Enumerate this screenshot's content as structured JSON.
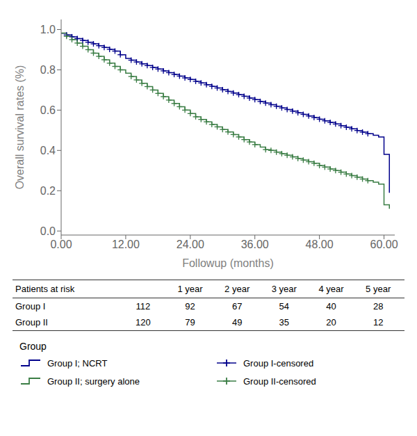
{
  "chart_data": {
    "type": "line",
    "xlabel": "Followup (months)",
    "ylabel": "Overall survival rates (%)",
    "xlim": [
      0,
      62
    ],
    "ylim": [
      -0.02,
      1.05
    ],
    "xticks": [
      {
        "value": 0,
        "label": "0.00"
      },
      {
        "value": 12,
        "label": "12.00"
      },
      {
        "value": 24,
        "label": "24.00"
      },
      {
        "value": 36,
        "label": "36.00"
      },
      {
        "value": 48,
        "label": "48.00"
      },
      {
        "value": 60,
        "label": "60.00"
      }
    ],
    "yticks": [
      {
        "value": 0.0,
        "label": "0.0"
      },
      {
        "value": 0.2,
        "label": "0.2"
      },
      {
        "value": 0.4,
        "label": "0.4"
      },
      {
        "value": 0.6,
        "label": "0.6"
      },
      {
        "value": 0.8,
        "label": "0.8"
      },
      {
        "value": 1.0,
        "label": "1.0"
      }
    ],
    "legend": "bottom",
    "legend_title": "Group",
    "series": [
      {
        "name": "Group I; NCRT",
        "type": "line",
        "line_style": "step",
        "color": "#00008B",
        "x": [
          0,
          1,
          2,
          3,
          4,
          5,
          6,
          7,
          8,
          9,
          10,
          11,
          12,
          13,
          14,
          15,
          16,
          17,
          18,
          19,
          20,
          21,
          22,
          23,
          24,
          25,
          26,
          27,
          28,
          29,
          30,
          31,
          32,
          33,
          34,
          35,
          36,
          37,
          38,
          39,
          40,
          41,
          42,
          43,
          44,
          45,
          46,
          47,
          48,
          49,
          50,
          51,
          52,
          53,
          54,
          55,
          56,
          57,
          58,
          59,
          60,
          61
        ],
        "values": [
          0.982,
          0.973,
          0.964,
          0.955,
          0.946,
          0.937,
          0.929,
          0.92,
          0.911,
          0.902,
          0.893,
          0.875,
          0.857,
          0.848,
          0.839,
          0.83,
          0.821,
          0.812,
          0.804,
          0.795,
          0.786,
          0.777,
          0.769,
          0.76,
          0.752,
          0.743,
          0.735,
          0.726,
          0.718,
          0.71,
          0.701,
          0.693,
          0.685,
          0.677,
          0.669,
          0.66,
          0.652,
          0.643,
          0.635,
          0.627,
          0.619,
          0.611,
          0.603,
          0.595,
          0.587,
          0.579,
          0.571,
          0.563,
          0.555,
          0.547,
          0.539,
          0.531,
          0.523,
          0.515,
          0.507,
          0.499,
          0.491,
          0.483,
          0.475,
          0.467,
          0.38,
          0.19
        ]
      },
      {
        "name": "Group II; surgery alone",
        "type": "line",
        "line_style": "step",
        "color": "#3A7D44",
        "x": [
          0,
          1,
          2,
          3,
          4,
          5,
          6,
          7,
          8,
          9,
          10,
          11,
          12,
          13,
          14,
          15,
          16,
          17,
          18,
          19,
          20,
          21,
          22,
          23,
          24,
          25,
          26,
          27,
          28,
          29,
          30,
          31,
          32,
          33,
          34,
          35,
          36,
          37,
          38,
          39,
          40,
          41,
          42,
          43,
          44,
          45,
          46,
          47,
          48,
          49,
          50,
          51,
          52,
          53,
          54,
          55,
          56,
          57,
          58,
          59,
          60,
          61
        ],
        "values": [
          0.983,
          0.966,
          0.95,
          0.933,
          0.917,
          0.9,
          0.883,
          0.867,
          0.85,
          0.833,
          0.817,
          0.8,
          0.783,
          0.767,
          0.75,
          0.733,
          0.717,
          0.7,
          0.683,
          0.667,
          0.65,
          0.633,
          0.617,
          0.6,
          0.583,
          0.567,
          0.554,
          0.542,
          0.529,
          0.517,
          0.504,
          0.492,
          0.479,
          0.467,
          0.454,
          0.442,
          0.429,
          0.417,
          0.404,
          0.4,
          0.392,
          0.384,
          0.376,
          0.368,
          0.36,
          0.352,
          0.344,
          0.336,
          0.325,
          0.317,
          0.308,
          0.3,
          0.292,
          0.283,
          0.275,
          0.267,
          0.258,
          0.25,
          0.242,
          0.233,
          0.13,
          0.11
        ]
      },
      {
        "name": "Group I-censored",
        "type": "scatter",
        "marker": "+",
        "color": "#00008B",
        "x": [
          1,
          2,
          3,
          4,
          5,
          6,
          7,
          8,
          9,
          10,
          11,
          13,
          14,
          15,
          16,
          17,
          18,
          19,
          20,
          21,
          22,
          23,
          24,
          25,
          26,
          27,
          28,
          29,
          30,
          31,
          32,
          33,
          34,
          35,
          36,
          37,
          38,
          39,
          40,
          41,
          42,
          43,
          44,
          45,
          46,
          47,
          48,
          49,
          50,
          51,
          52,
          53,
          54,
          55,
          56,
          57
        ],
        "values": [
          0.973,
          0.964,
          0.955,
          0.946,
          0.937,
          0.929,
          0.92,
          0.911,
          0.902,
          0.893,
          0.875,
          0.848,
          0.839,
          0.83,
          0.821,
          0.812,
          0.804,
          0.795,
          0.786,
          0.777,
          0.769,
          0.76,
          0.752,
          0.743,
          0.735,
          0.726,
          0.718,
          0.71,
          0.701,
          0.693,
          0.685,
          0.677,
          0.669,
          0.66,
          0.652,
          0.643,
          0.635,
          0.627,
          0.619,
          0.611,
          0.603,
          0.595,
          0.587,
          0.579,
          0.571,
          0.563,
          0.555,
          0.547,
          0.539,
          0.531,
          0.523,
          0.515,
          0.507,
          0.499,
          0.491,
          0.483
        ]
      },
      {
        "name": "Group II-censored",
        "type": "scatter",
        "marker": "+",
        "color": "#3A7D44",
        "x": [
          1,
          2,
          3,
          4,
          5,
          6,
          7,
          8,
          9,
          10,
          11,
          13,
          14,
          15,
          16,
          17,
          18,
          19,
          20,
          21,
          22,
          23,
          24,
          25,
          26,
          27,
          28,
          29,
          30,
          31,
          32,
          33,
          34,
          35,
          36,
          38,
          39,
          40,
          41,
          42,
          43,
          44,
          45,
          46,
          47,
          48,
          49,
          50,
          51,
          52,
          53,
          54,
          55,
          56,
          57
        ],
        "values": [
          0.966,
          0.95,
          0.933,
          0.917,
          0.9,
          0.883,
          0.867,
          0.85,
          0.833,
          0.817,
          0.8,
          0.767,
          0.75,
          0.733,
          0.717,
          0.7,
          0.683,
          0.667,
          0.65,
          0.633,
          0.617,
          0.6,
          0.583,
          0.567,
          0.554,
          0.542,
          0.529,
          0.517,
          0.504,
          0.492,
          0.479,
          0.467,
          0.454,
          0.442,
          0.429,
          0.404,
          0.4,
          0.392,
          0.384,
          0.376,
          0.368,
          0.36,
          0.352,
          0.344,
          0.336,
          0.325,
          0.317,
          0.308,
          0.3,
          0.292,
          0.283,
          0.275,
          0.267,
          0.258,
          0.25
        ]
      }
    ],
    "risk_table": {
      "header": [
        "Patients at risk",
        "1 year",
        "2 year",
        "3 year",
        "4 year",
        "5 year"
      ],
      "rows": [
        {
          "label": "Group I",
          "values": [
            112,
            92,
            67,
            54,
            40,
            28
          ]
        },
        {
          "label": "Group II",
          "values": [
            120,
            79,
            49,
            35,
            20,
            12
          ]
        }
      ]
    }
  }
}
